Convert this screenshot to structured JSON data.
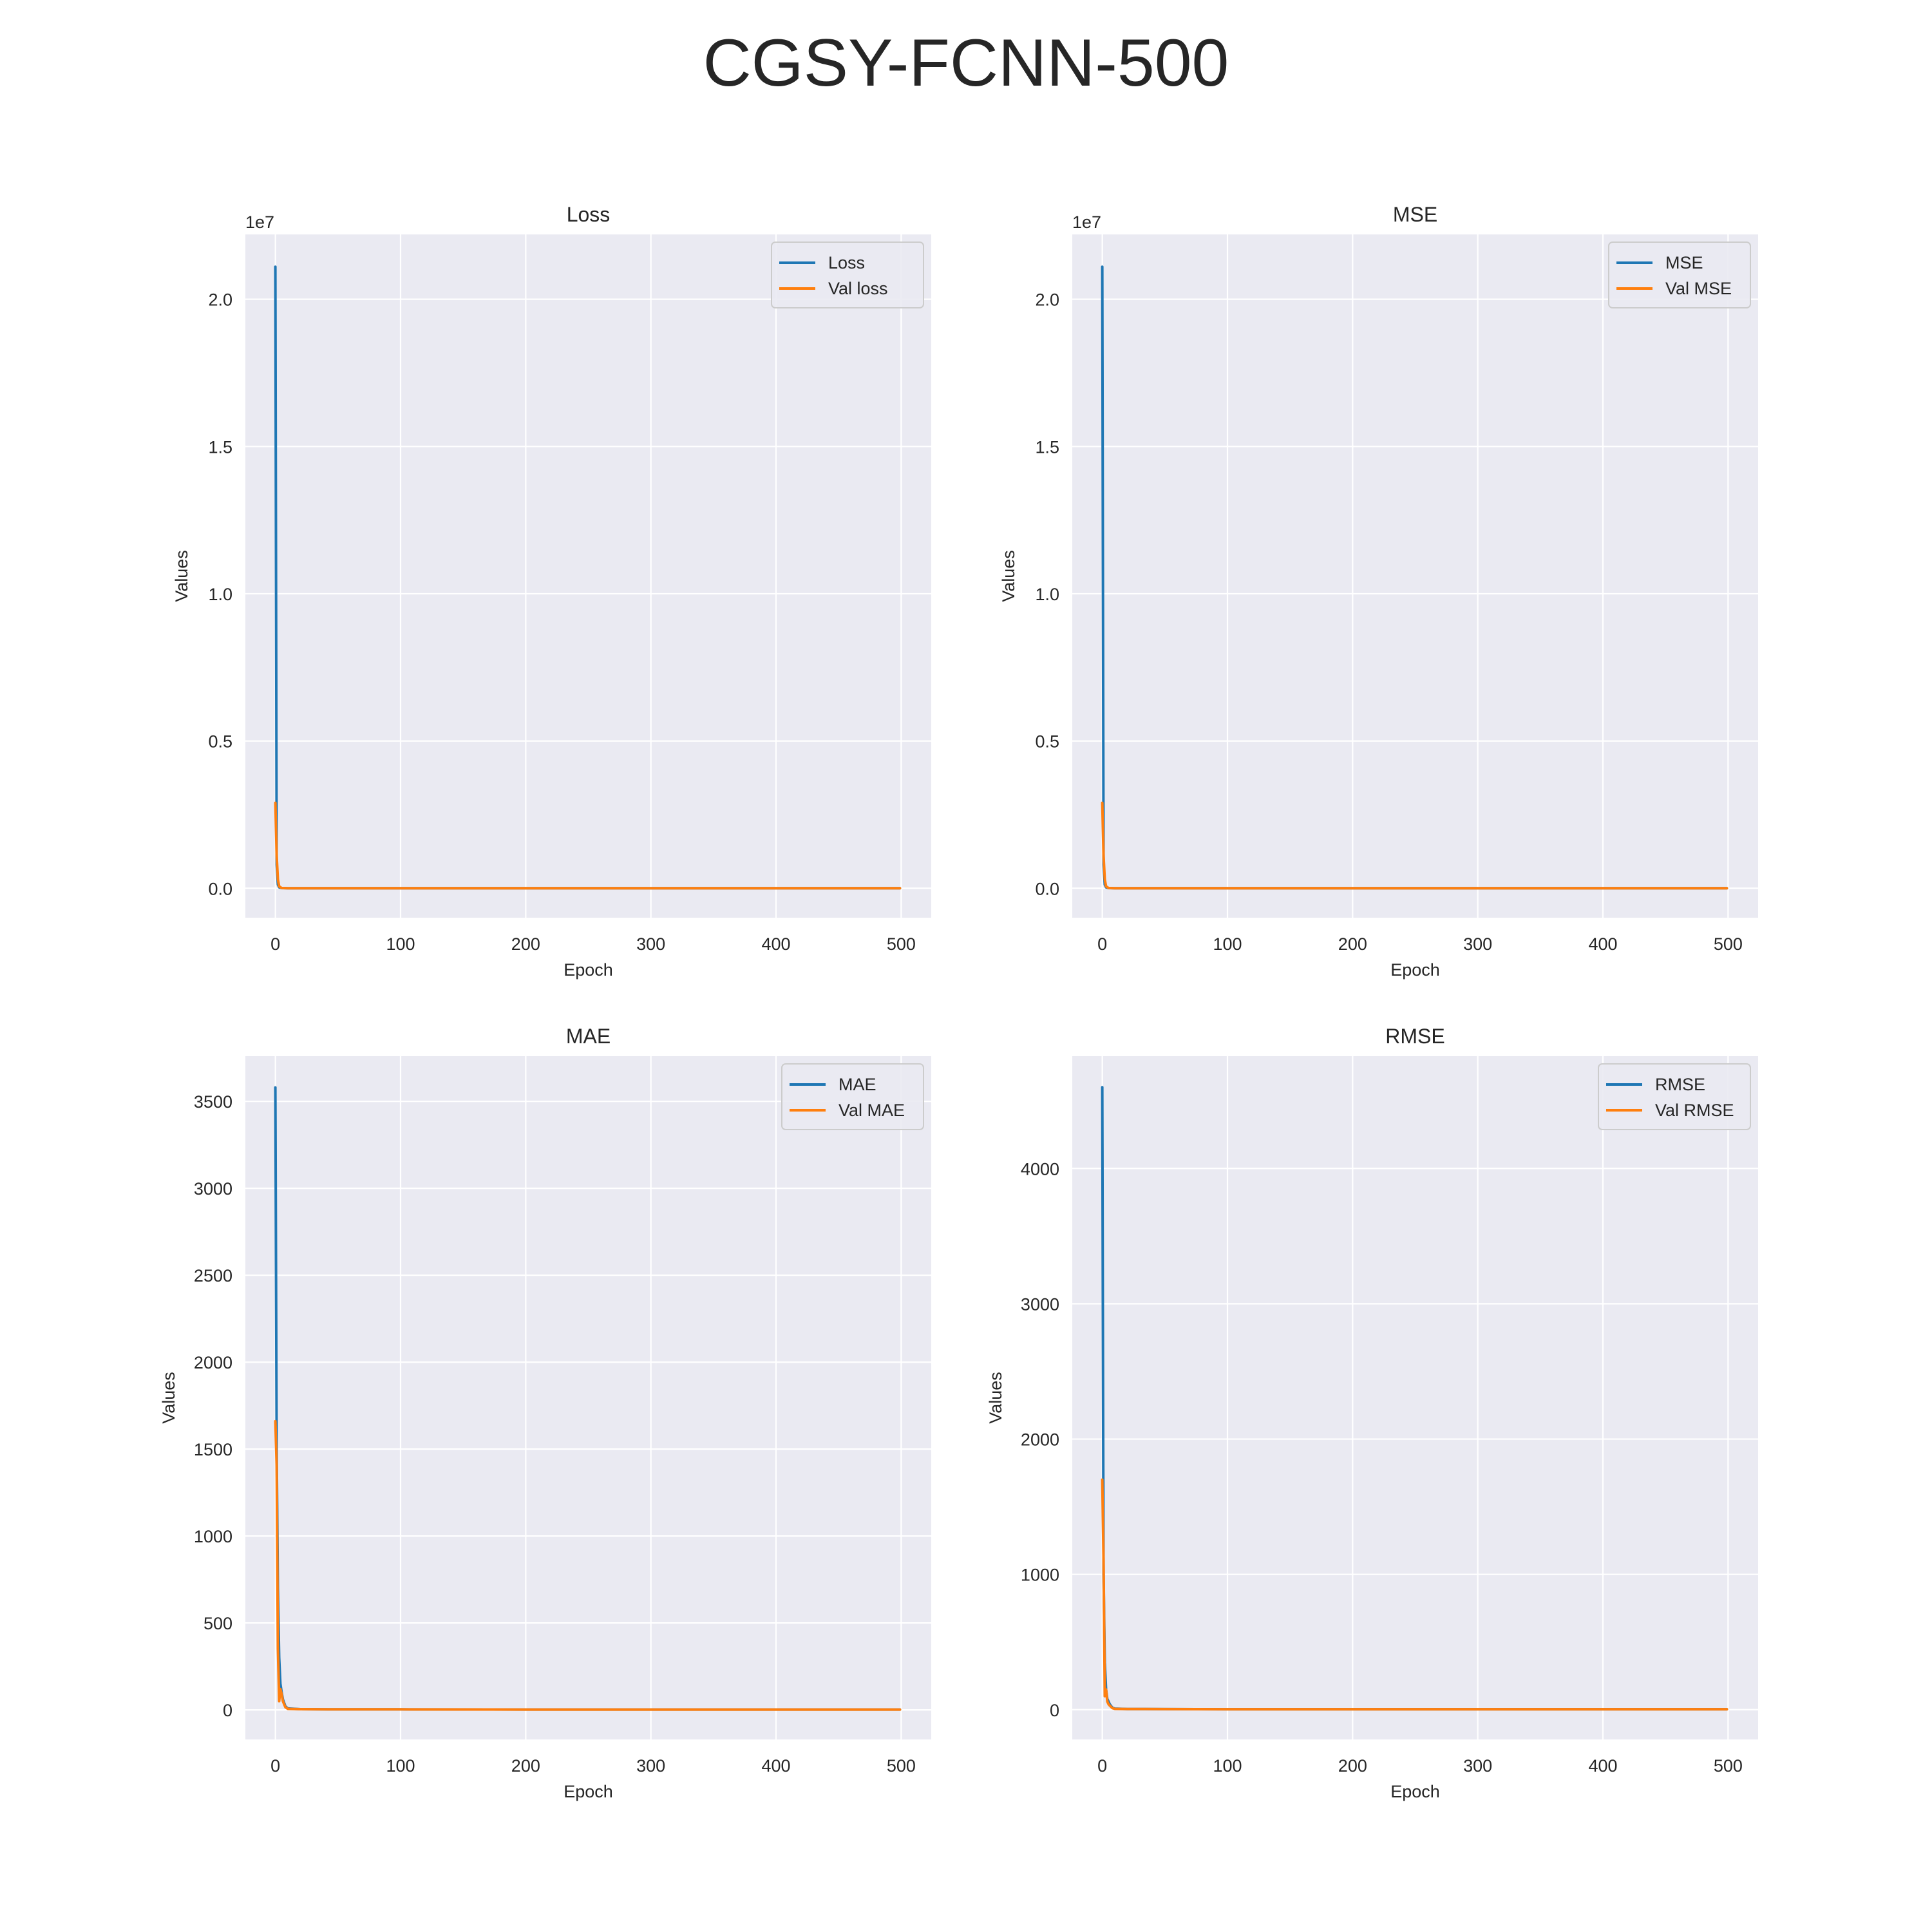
{
  "figure": {
    "title": "CGSY-FCNN-500"
  },
  "colors": {
    "train": "#1f77b4",
    "val": "#ff7f0e",
    "background": "#eaeaf2",
    "grid": "#ffffff"
  },
  "chart_data": [
    {
      "type": "line",
      "title": "Loss",
      "xlabel": "Epoch",
      "ylabel": "Values",
      "offset_text": "1e7",
      "xlim": [
        -24,
        524
      ],
      "ylim": [
        -1000000,
        22200000
      ],
      "xticks": [
        0,
        100,
        200,
        300,
        400,
        500
      ],
      "yticks": [
        0,
        5000000,
        10000000,
        15000000,
        20000000
      ],
      "ytick_labels": [
        "0.0",
        "0.5",
        "1.0",
        "1.5",
        "2.0"
      ],
      "grid": true,
      "legend_position": "top-right",
      "series": [
        {
          "name": "Loss",
          "x": [
            0,
            1,
            2,
            3,
            5,
            10,
            50,
            100,
            200,
            300,
            400,
            499
          ],
          "y": [
            21100000,
            800000,
            120000,
            30000,
            5000,
            800,
            100,
            60,
            40,
            30,
            25,
            20
          ]
        },
        {
          "name": "Val loss",
          "x": [
            0,
            1,
            2,
            3,
            5,
            10,
            50,
            100,
            200,
            300,
            400,
            499
          ],
          "y": [
            2900000,
            1100000,
            300000,
            60000,
            8000,
            1000,
            120,
            70,
            50,
            40,
            30,
            25
          ]
        }
      ]
    },
    {
      "type": "line",
      "title": "MSE",
      "xlabel": "Epoch",
      "ylabel": "Values",
      "offset_text": "1e7",
      "xlim": [
        -24,
        524
      ],
      "ylim": [
        -1000000,
        22200000
      ],
      "xticks": [
        0,
        100,
        200,
        300,
        400,
        500
      ],
      "yticks": [
        0,
        5000000,
        10000000,
        15000000,
        20000000
      ],
      "ytick_labels": [
        "0.0",
        "0.5",
        "1.0",
        "1.5",
        "2.0"
      ],
      "grid": true,
      "legend_position": "top-right",
      "series": [
        {
          "name": "MSE",
          "x": [
            0,
            1,
            2,
            3,
            5,
            10,
            50,
            100,
            200,
            300,
            400,
            499
          ],
          "y": [
            21100000,
            800000,
            120000,
            30000,
            5000,
            800,
            100,
            60,
            40,
            30,
            25,
            20
          ]
        },
        {
          "name": "Val MSE",
          "x": [
            0,
            1,
            2,
            3,
            5,
            10,
            50,
            100,
            200,
            300,
            400,
            499
          ],
          "y": [
            2900000,
            1100000,
            300000,
            60000,
            8000,
            1000,
            120,
            70,
            50,
            40,
            30,
            25
          ]
        }
      ]
    },
    {
      "type": "line",
      "title": "MAE",
      "xlabel": "Epoch",
      "ylabel": "Values",
      "offset_text": "",
      "xlim": [
        -24,
        524
      ],
      "ylim": [
        -170,
        3760
      ],
      "xticks": [
        0,
        100,
        200,
        300,
        400,
        500
      ],
      "yticks": [
        0,
        500,
        1000,
        1500,
        2000,
        2500,
        3000,
        3500
      ],
      "ytick_labels": [
        "0",
        "500",
        "1000",
        "1500",
        "2000",
        "2500",
        "3000",
        "3500"
      ],
      "grid": true,
      "legend_position": "top-right",
      "series": [
        {
          "name": "MAE",
          "x": [
            0,
            1,
            2,
            3,
            4,
            5,
            6,
            8,
            10,
            20,
            50,
            100,
            200,
            300,
            400,
            499
          ],
          "y": [
            3580,
            1500,
            700,
            300,
            150,
            100,
            60,
            20,
            8,
            4,
            3,
            3,
            2,
            2,
            2,
            2
          ]
        },
        {
          "name": "Val MAE",
          "x": [
            0,
            1,
            2,
            3,
            4,
            5,
            6,
            8,
            10,
            20,
            50,
            100,
            200,
            300,
            400,
            499
          ],
          "y": [
            1660,
            1400,
            350,
            50,
            120,
            90,
            50,
            15,
            6,
            4,
            3,
            3,
            2,
            2,
            2,
            2
          ]
        }
      ]
    },
    {
      "type": "line",
      "title": "RMSE",
      "xlabel": "Epoch",
      "ylabel": "Values",
      "offset_text": "",
      "xlim": [
        -24,
        524
      ],
      "ylim": [
        -220,
        4830
      ],
      "xticks": [
        0,
        100,
        200,
        300,
        400,
        500
      ],
      "yticks": [
        0,
        1000,
        2000,
        3000,
        4000
      ],
      "ytick_labels": [
        "0",
        "1000",
        "2000",
        "3000",
        "4000"
      ],
      "grid": true,
      "legend_position": "top-right",
      "series": [
        {
          "name": "RMSE",
          "x": [
            0,
            1,
            2,
            3,
            4,
            5,
            6,
            8,
            10,
            20,
            50,
            100,
            200,
            300,
            400,
            499
          ],
          "y": [
            4600,
            1000,
            350,
            150,
            80,
            60,
            40,
            15,
            8,
            5,
            4,
            3,
            3,
            3,
            3,
            3
          ]
        },
        {
          "name": "Val RMSE",
          "x": [
            0,
            1,
            2,
            3,
            4,
            5,
            6,
            8,
            10,
            20,
            50,
            100,
            200,
            300,
            400,
            499
          ],
          "y": [
            1700,
            1100,
            100,
            150,
            60,
            40,
            30,
            12,
            6,
            5,
            4,
            3,
            3,
            3,
            3,
            3
          ]
        }
      ]
    }
  ]
}
